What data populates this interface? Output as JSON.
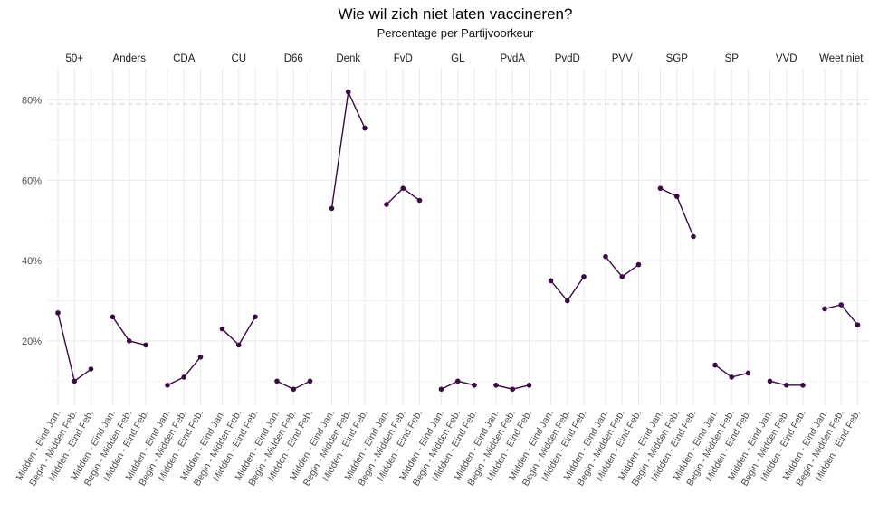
{
  "chart_data": {
    "type": "line",
    "title": "Wie wil zich niet laten vaccineren?",
    "subtitle": "Percentage per Partijvoorkeur",
    "x": [
      "Midden - Eind Jan.",
      "Begin - Midden Feb.",
      "Midden - Eind Feb."
    ],
    "yticks": [
      20,
      40,
      60,
      80
    ],
    "ytick_labels": [
      "20%",
      "40%",
      "60%",
      "80%"
    ],
    "ylim": [
      4,
      88
    ],
    "reference_line": 79,
    "grid": true,
    "line_color": "#3b0a45",
    "panels": [
      {
        "name": "50+",
        "values": [
          27,
          10,
          13
        ]
      },
      {
        "name": "Anders",
        "values": [
          26,
          20,
          19
        ]
      },
      {
        "name": "CDA",
        "values": [
          9,
          11,
          16
        ]
      },
      {
        "name": "CU",
        "values": [
          23,
          19,
          26
        ]
      },
      {
        "name": "D66",
        "values": [
          10,
          8,
          10
        ]
      },
      {
        "name": "Denk",
        "values": [
          53,
          82,
          73
        ]
      },
      {
        "name": "FvD",
        "values": [
          54,
          58,
          55
        ]
      },
      {
        "name": "GL",
        "values": [
          8,
          10,
          9
        ]
      },
      {
        "name": "PvdA",
        "values": [
          9,
          8,
          9
        ]
      },
      {
        "name": "PvdD",
        "values": [
          35,
          30,
          36
        ]
      },
      {
        "name": "PVV",
        "values": [
          41,
          36,
          39
        ]
      },
      {
        "name": "SGP",
        "values": [
          58,
          56,
          46
        ]
      },
      {
        "name": "SP",
        "values": [
          14,
          11,
          12
        ]
      },
      {
        "name": "VVD",
        "values": [
          10,
          9,
          9
        ]
      },
      {
        "name": "Weet niet",
        "values": [
          28,
          29,
          24
        ]
      }
    ]
  }
}
